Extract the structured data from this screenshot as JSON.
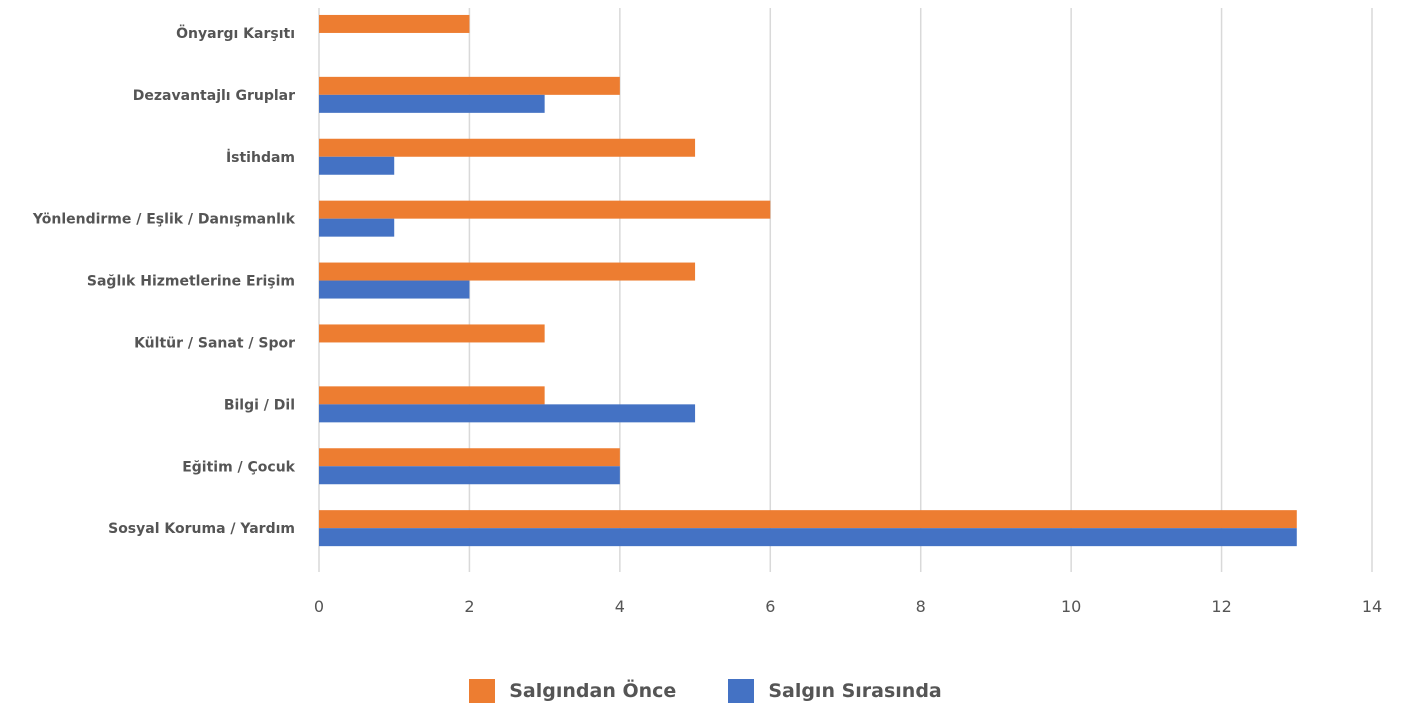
{
  "chart_data": {
    "type": "bar",
    "orientation": "horizontal",
    "categories": [
      "Önyargı Karşıtı",
      "Dezavantajlı Gruplar",
      "İstihdam",
      "Yönlendirme / Eşlik / Danışmanlık",
      "Sağlık Hizmetlerine Erişim",
      "Kültür / Sanat / Spor",
      "Bilgi / Dil",
      "Eğitim / Çocuk",
      "Sosyal Koruma / Yardım"
    ],
    "series": [
      {
        "name": "Salgından Önce",
        "color": "#ed7d31",
        "values": [
          2,
          4,
          5,
          6,
          5,
          3,
          3,
          4,
          13
        ]
      },
      {
        "name": "Salgın Sırasında",
        "color": "#4472c4",
        "values": [
          0,
          3,
          1,
          1,
          2,
          0,
          5,
          4,
          13
        ]
      }
    ],
    "xlim": [
      0,
      14
    ],
    "xticks": [
      "0",
      "2",
      "4",
      "6",
      "8",
      "10",
      "12",
      "14"
    ],
    "grid": true,
    "legend_position": "bottom"
  }
}
